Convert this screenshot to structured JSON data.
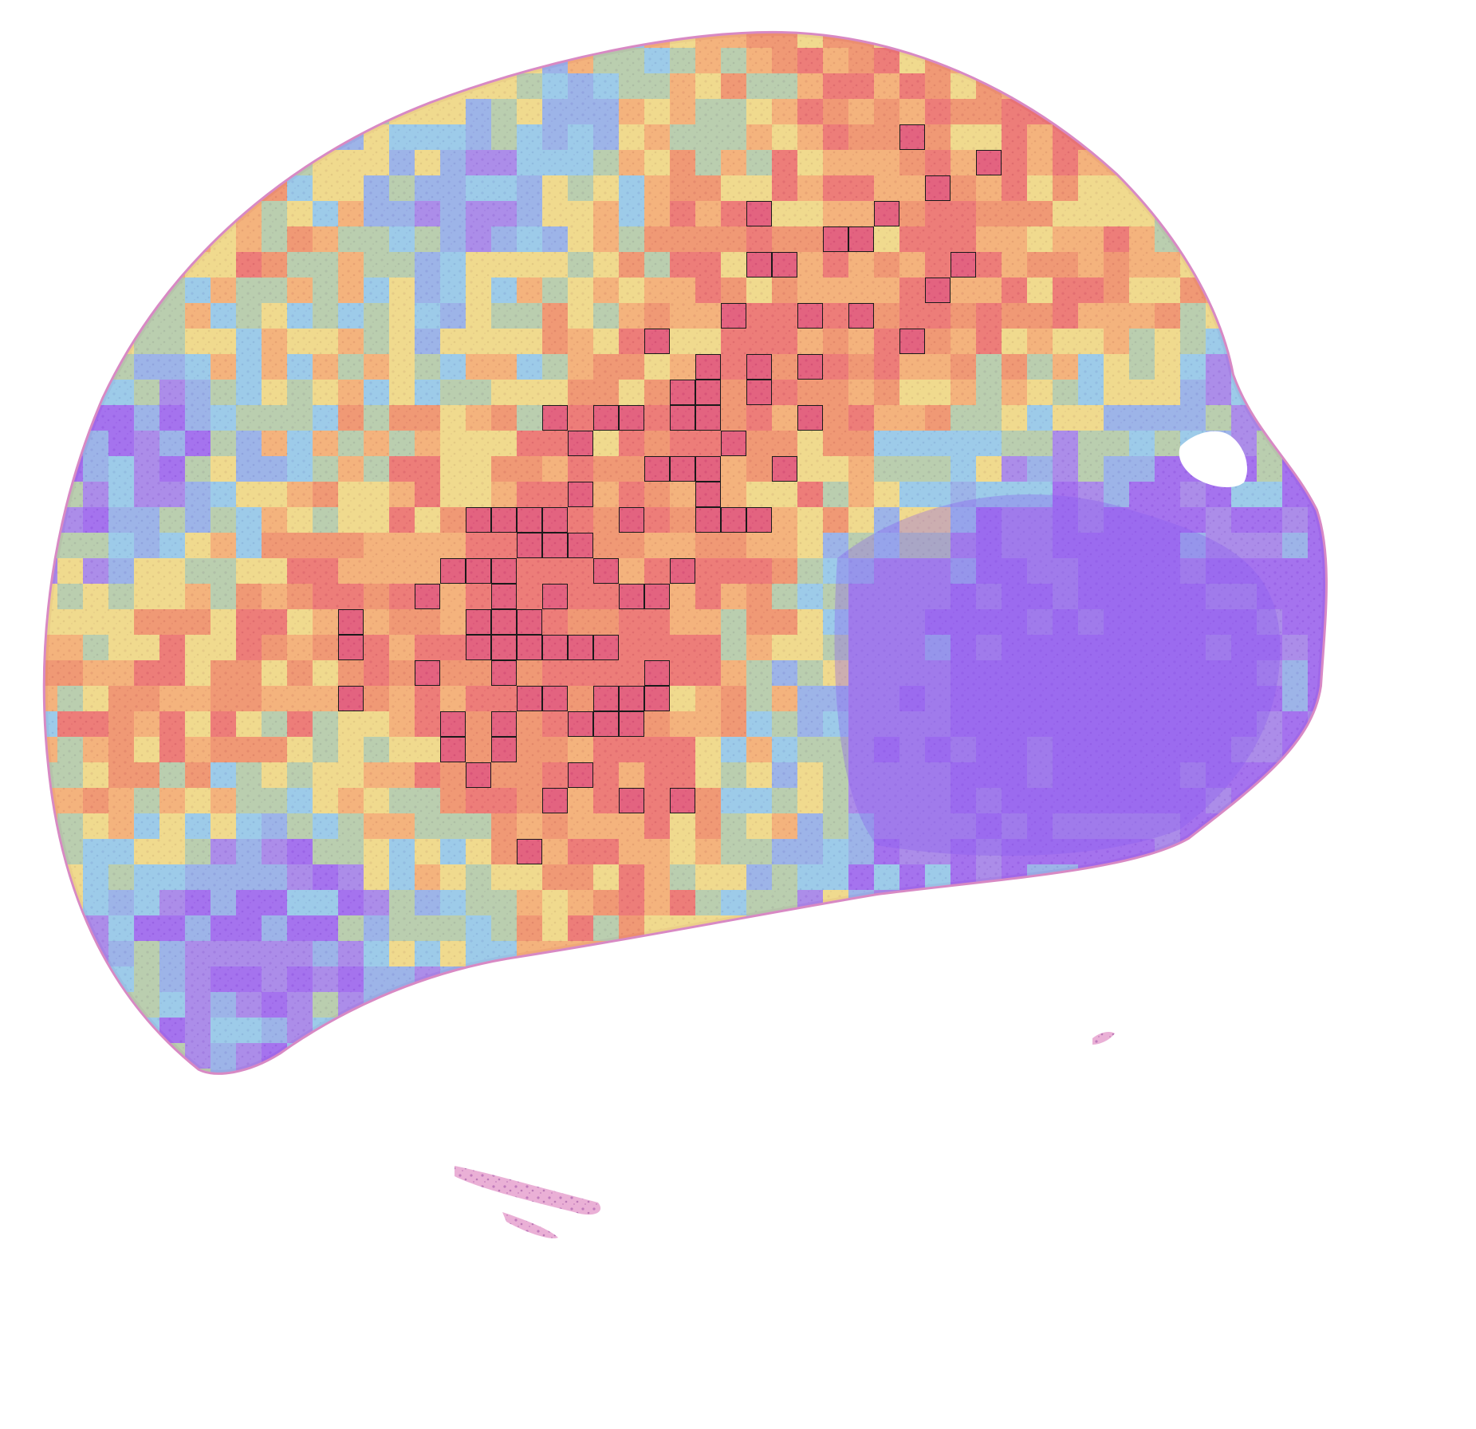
{
  "image": {
    "subject": "whole-slide-tissue-heatmap",
    "background_color": "#ffffff",
    "tissue_color": "#e9a6d2",
    "tissue_edge_color": "#d889c4"
  },
  "heatmap": {
    "palette": [
      "#8b5cf6",
      "#9480f0",
      "#7fb6ee",
      "#7fd6f0",
      "#a8d9a0",
      "#f2ea72",
      "#f8b45a",
      "#f3904f",
      "#ee6a55",
      "#e0455e"
    ],
    "opacity": 0.72,
    "highlight_threshold": 9,
    "highlight_outline_color": "#1a1a1a",
    "lesion_region_color": "#8a5cf2"
  }
}
